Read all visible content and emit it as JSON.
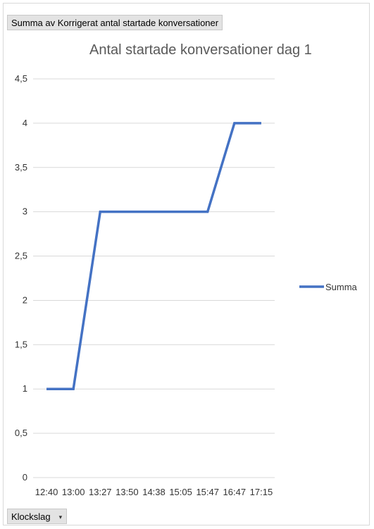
{
  "pivot_value_field": "Summa av Korrigerat antal startade konversationer",
  "pivot_axis_field": "Klockslag",
  "colors": {
    "series": "#4472c4",
    "grid": "#d9d9d9"
  },
  "icons": {
    "axis_field_dropdown": "dropdown-arrow-icon"
  },
  "chart_data": {
    "type": "line",
    "title": "Antal startade konversationer dag 1",
    "xlabel": "",
    "ylabel": "",
    "x": [
      "12:40",
      "13:00",
      "13:27",
      "13:50",
      "14:38",
      "15:05",
      "15:47",
      "16:47",
      "17:15"
    ],
    "series": [
      {
        "name": "Summa",
        "values": [
          1,
          1,
          3,
          3,
          3,
          3,
          3,
          4,
          4
        ]
      }
    ],
    "ylim": [
      0,
      4.5
    ],
    "yticks": [
      "0",
      "0,5",
      "1",
      "1,5",
      "2",
      "2,5",
      "3",
      "3,5",
      "4",
      "4,5"
    ],
    "grid": true,
    "legend": "right"
  }
}
